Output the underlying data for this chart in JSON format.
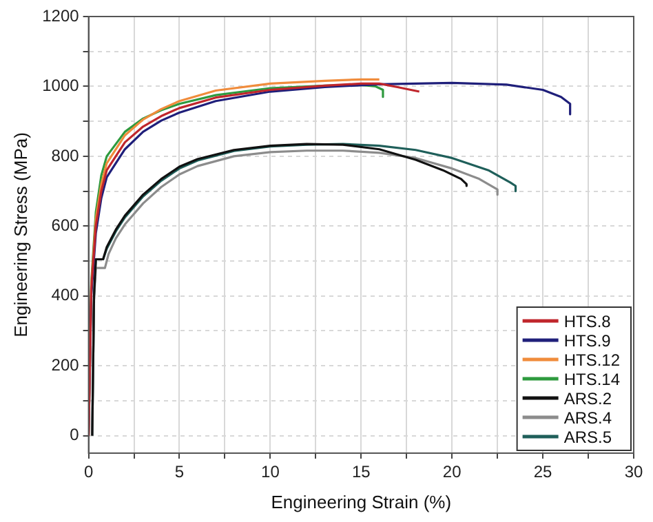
{
  "chart_data": {
    "type": "line",
    "xlabel": "Engineering Strain (%)",
    "ylabel": "Engineering Stress (MPa)",
    "xlim": [
      0,
      30
    ],
    "ylim": [
      -50,
      1200
    ],
    "xticks": [
      0,
      {
        "value": 2.5,
        "label": null
      },
      5,
      {
        "value": 7.5,
        "label": null
      },
      10,
      {
        "value": 12.5,
        "label": null
      },
      15,
      {
        "value": 17.5,
        "label": null
      },
      20,
      {
        "value": 22.5,
        "label": null
      },
      25,
      {
        "value": 27.5,
        "label": null
      },
      30
    ],
    "yticks": [
      0,
      {
        "value": 100,
        "label": null
      },
      200,
      {
        "value": 300,
        "label": null
      },
      400,
      {
        "value": 500,
        "label": null
      },
      600,
      {
        "value": 700,
        "label": null
      },
      800,
      {
        "value": 900,
        "label": null
      },
      1000,
      {
        "value": 1100,
        "label": null
      },
      1200
    ],
    "grid": true,
    "legend": "bottom right",
    "marker": "none",
    "line_style": "solid",
    "series": [
      {
        "name": "HTS.8",
        "color": "#c0262c",
        "x": [
          0,
          0.15,
          0.4,
          0.7,
          1,
          2,
          3,
          4,
          5,
          7,
          10,
          13,
          15,
          16,
          17,
          18.2
        ],
        "values": [
          0,
          420,
          600,
          700,
          760,
          840,
          885,
          915,
          938,
          968,
          990,
          1002,
          1008,
          1008,
          998,
          985
        ]
      },
      {
        "name": "HTS.9",
        "color": "#1f1f7a",
        "x": [
          0,
          0.15,
          0.4,
          0.7,
          1,
          2,
          3,
          4,
          5,
          7,
          10,
          13,
          16,
          20,
          23,
          25,
          26,
          26.5,
          26.5
        ],
        "values": [
          0,
          400,
          580,
          680,
          740,
          820,
          870,
          902,
          925,
          958,
          985,
          998,
          1006,
          1010,
          1005,
          990,
          970,
          950,
          920
        ]
      },
      {
        "name": "HTS.12",
        "color": "#f08c3c",
        "x": [
          0,
          0.15,
          0.4,
          0.7,
          1,
          2,
          3,
          4,
          5,
          7,
          10,
          13,
          15,
          16
        ],
        "values": [
          0,
          430,
          620,
          720,
          780,
          860,
          905,
          935,
          958,
          988,
          1008,
          1016,
          1020,
          1020
        ]
      },
      {
        "name": "HTS.14",
        "color": "#2e9a3e",
        "x": [
          0,
          0.15,
          0.4,
          0.7,
          1,
          2,
          3,
          4,
          5,
          7,
          10,
          13,
          15,
          15.8,
          16.2,
          16.2
        ],
        "values": [
          0,
          440,
          640,
          745,
          800,
          870,
          908,
          932,
          950,
          975,
          995,
          1002,
          1004,
          1000,
          990,
          970
        ]
      },
      {
        "name": "ARS.2",
        "color": "#111111",
        "x": [
          0.2,
          0.3,
          0.4,
          0.8,
          1,
          1.5,
          2,
          3,
          4,
          5,
          6,
          8,
          10,
          12,
          14,
          16,
          18,
          19.5,
          20.5,
          20.8,
          20.8
        ],
        "values": [
          0,
          400,
          505,
          505,
          540,
          590,
          630,
          690,
          735,
          770,
          792,
          818,
          830,
          835,
          833,
          820,
          790,
          760,
          735,
          720,
          715
        ]
      },
      {
        "name": "ARS.4",
        "color": "#8c8c8c",
        "x": [
          0.2,
          0.3,
          0.4,
          0.9,
          1.1,
          1.5,
          2,
          3,
          4,
          5,
          6,
          8,
          10,
          12,
          14,
          16,
          18,
          20,
          21.5,
          22.5,
          22.5
        ],
        "values": [
          0,
          390,
          480,
          480,
          520,
          565,
          605,
          665,
          712,
          748,
          772,
          800,
          812,
          816,
          816,
          810,
          795,
          765,
          735,
          705,
          690
        ]
      },
      {
        "name": "ARS.5",
        "color": "#1f5f5a",
        "x": [
          0.2,
          0.3,
          0.4,
          0.8,
          1,
          1.5,
          2,
          3,
          4,
          5,
          6,
          8,
          10,
          12,
          14,
          16,
          18,
          20,
          22,
          23.2,
          23.5,
          23.5
        ],
        "values": [
          0,
          400,
          505,
          505,
          535,
          585,
          625,
          685,
          730,
          765,
          788,
          815,
          828,
          833,
          835,
          830,
          818,
          795,
          760,
          725,
          715,
          700
        ]
      }
    ]
  }
}
